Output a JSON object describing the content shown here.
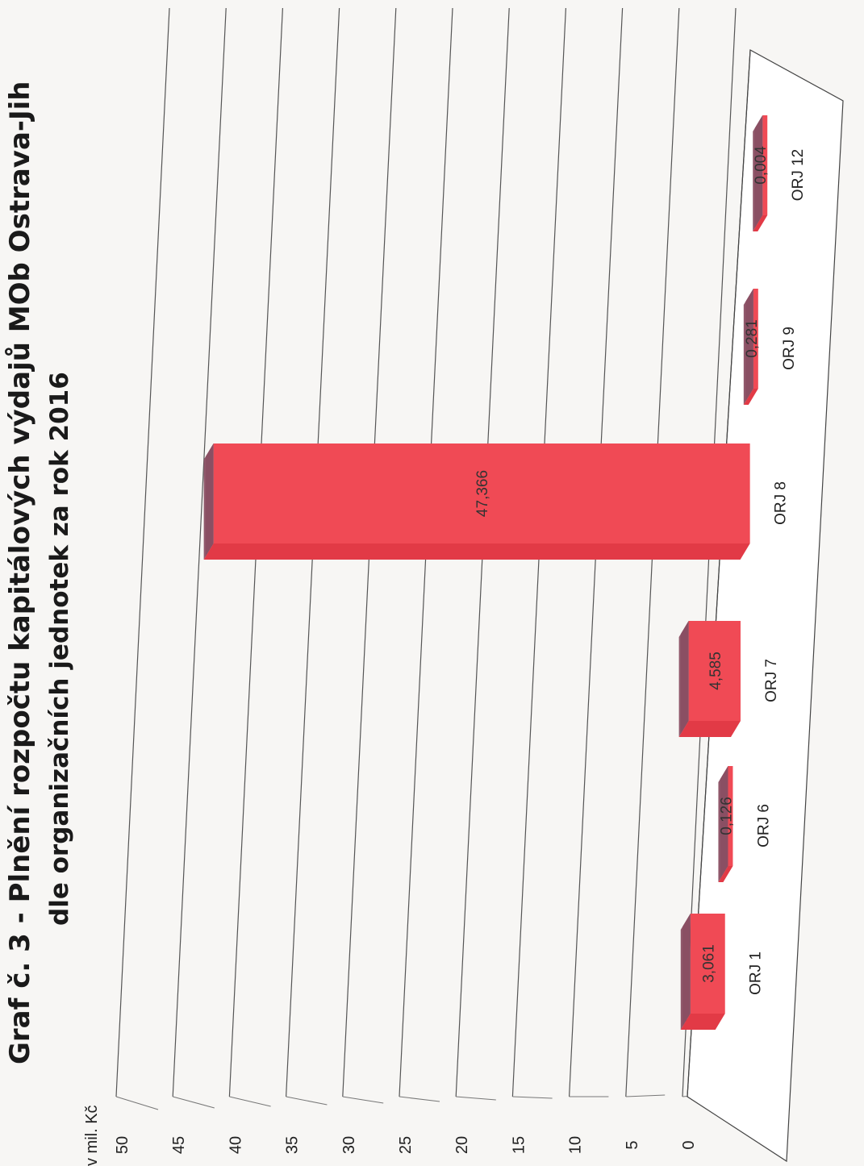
{
  "chart_data": {
    "type": "bar",
    "title": "Graf č. 3 - Plnění rozpočtu kapitálových výdajů MOb Ostrava-Jih",
    "subtitle": "dle organizačních jednotek za rok 2016",
    "ylabel": "v mil. Kč",
    "xlabel": "",
    "ylim": [
      0,
      50
    ],
    "yticks": [
      "0",
      "5",
      "10",
      "15",
      "20",
      "25",
      "30",
      "35",
      "40",
      "45",
      "50"
    ],
    "categories": [
      "ORJ 1",
      "ORJ 6",
      "ORJ 7",
      "ORJ 8",
      "ORJ 9",
      "ORJ 12"
    ],
    "values": [
      3.061,
      0.126,
      4.585,
      47.366,
      0.281,
      0.004
    ],
    "value_labels": [
      "3,061",
      "0,126",
      "4,585",
      "47,366",
      "0,281",
      "0,004"
    ],
    "grid": true,
    "orientation": "rotated-3d",
    "colors": {
      "front": "#f04a55",
      "top": "#8a4f63",
      "side": "#e23a46",
      "floor": "#ffffff"
    }
  }
}
